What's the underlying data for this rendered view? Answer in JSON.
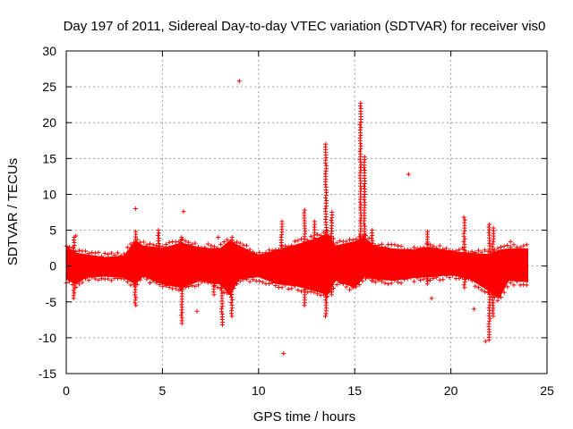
{
  "chart_data": {
    "type": "scatter",
    "title": "Day 197 of 2011, Sidereal Day-to-day VTEC variation (SDTVAR) for receiver vis0",
    "xlabel": "GPS time / hours",
    "ylabel": "SDTVAR / TECUs",
    "xlim": [
      0,
      25
    ],
    "ylim": [
      -15,
      30
    ],
    "xticks": [
      0,
      5,
      10,
      15,
      20,
      25
    ],
    "yticks": [
      -15,
      -10,
      -5,
      0,
      5,
      10,
      15,
      20,
      25,
      30
    ],
    "grid": true,
    "marker": "+",
    "color": "#ff0000",
    "series": [
      {
        "name": "SDTVAR",
        "band": {
          "x": [
            0,
            0.5,
            1,
            2,
            3,
            3.6,
            4,
            5,
            6,
            7,
            8,
            8.5,
            9,
            10,
            11,
            12,
            13,
            13.6,
            14,
            15,
            15.5,
            16,
            17,
            18,
            19,
            20,
            21,
            22,
            22.5,
            23,
            24
          ],
          "upper": [
            2.8,
            1.8,
            1.6,
            1.2,
            1.4,
            3.5,
            2.8,
            2.5,
            3.2,
            2.5,
            2.4,
            3.5,
            2.8,
            1.5,
            2.2,
            3.0,
            3.8,
            4.5,
            2.8,
            3.4,
            4.0,
            2.8,
            2.4,
            2.2,
            2.6,
            2.0,
            1.8,
            1.6,
            2.2,
            2.4,
            2.4
          ],
          "lower": [
            -1.8,
            -2.5,
            -1.6,
            -1.4,
            -1.6,
            -2.5,
            -1.4,
            -2.5,
            -3.0,
            -2.0,
            -2.5,
            -4.0,
            -1.8,
            -1.5,
            -2.5,
            -2.8,
            -3.5,
            -4.0,
            -2.0,
            -3.0,
            -1.5,
            -1.8,
            -2.0,
            -1.6,
            -1.5,
            -1.2,
            -1.8,
            -3.5,
            -4.5,
            -2.0,
            -2.2
          ]
        },
        "spikes": [
          {
            "x": 0.4,
            "min": -4.5,
            "max": 4.0
          },
          {
            "x": 3.6,
            "min": -5.5,
            "max": 4.8
          },
          {
            "x": 4.8,
            "min": -1.0,
            "max": 5.0
          },
          {
            "x": 6.0,
            "min": -8.0,
            "max": 4.0
          },
          {
            "x": 7.7,
            "min": -4.0,
            "max": 0.5
          },
          {
            "x": 8.1,
            "min": -8.2,
            "max": 1.0
          },
          {
            "x": 8.6,
            "min": -7.0,
            "max": 4.0
          },
          {
            "x": 11.2,
            "min": -1.5,
            "max": 6.2
          },
          {
            "x": 12.4,
            "min": -5.5,
            "max": 7.8
          },
          {
            "x": 12.9,
            "min": -1.0,
            "max": 6.2
          },
          {
            "x": 13.5,
            "min": -7.0,
            "max": 17.0
          },
          {
            "x": 13.8,
            "min": -4.0,
            "max": 7.5
          },
          {
            "x": 15.3,
            "min": -1.5,
            "max": 22.7
          },
          {
            "x": 15.5,
            "min": 0.0,
            "max": 15.2
          },
          {
            "x": 15.9,
            "min": -2.0,
            "max": 5.0
          },
          {
            "x": 18.8,
            "min": -2.5,
            "max": 4.8
          },
          {
            "x": 20.7,
            "min": -3.0,
            "max": 6.8
          },
          {
            "x": 22.0,
            "min": -10.3,
            "max": 5.8
          },
          {
            "x": 22.2,
            "min": -7.0,
            "max": 5.3
          }
        ],
        "outliers": [
          {
            "x": 0.5,
            "y": 4.2
          },
          {
            "x": 3.6,
            "y": 8.0
          },
          {
            "x": 6.1,
            "y": 7.6
          },
          {
            "x": 6.8,
            "y": -6.3
          },
          {
            "x": 7.9,
            "y": 4.0
          },
          {
            "x": 9.0,
            "y": 25.8
          },
          {
            "x": 11.3,
            "y": -12.2
          },
          {
            "x": 17.8,
            "y": 12.8
          },
          {
            "x": 19.0,
            "y": -4.5
          },
          {
            "x": 21.2,
            "y": -6.0
          },
          {
            "x": 21.8,
            "y": -10.5
          },
          {
            "x": 23.1,
            "y": 3.4
          }
        ]
      }
    ]
  }
}
